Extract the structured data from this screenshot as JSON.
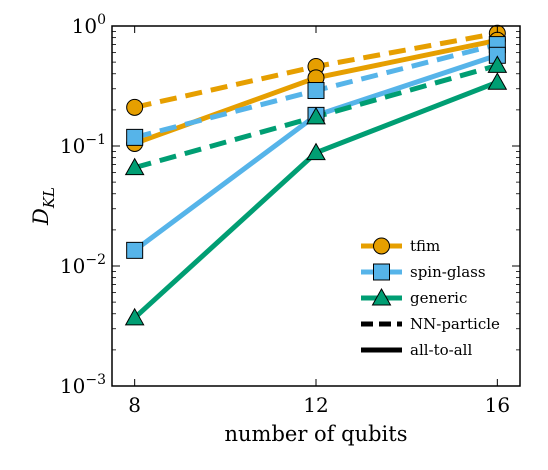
{
  "chart_data": {
    "type": "line",
    "xlabel": "number of qubits",
    "ylabel": "D",
    "ylabel_subscript": "KL",
    "x": [
      8,
      12,
      16
    ],
    "xticks": [
      "8",
      "12",
      "16"
    ],
    "yscale": "log",
    "ylim": [
      0.001,
      1.0
    ],
    "yticks": [
      {
        "base": "10",
        "exp": "0",
        "value": 1
      },
      {
        "base": "10",
        "exp": "−1",
        "value": 0.1
      },
      {
        "base": "10",
        "exp": "−2",
        "value": 0.01
      },
      {
        "base": "10",
        "exp": "−3",
        "value": 0.001
      }
    ],
    "grid": false,
    "legend_position": "bottom-right",
    "series": [
      {
        "name": "tfim",
        "variant": "NN-particle",
        "values": [
          0.21,
          0.46,
          0.87
        ],
        "color": "#E69F00",
        "marker": "circle",
        "dash": true
      },
      {
        "name": "tfim",
        "variant": "all-to-all",
        "values": [
          0.105,
          0.37,
          0.76
        ],
        "color": "#E69F00",
        "marker": "circle",
        "dash": false
      },
      {
        "name": "spin-glass",
        "variant": "NN-particle",
        "values": [
          0.118,
          0.29,
          0.7
        ],
        "color": "#56B4E9",
        "marker": "square",
        "dash": true
      },
      {
        "name": "spin-glass",
        "variant": "all-to-all",
        "values": [
          0.0135,
          0.18,
          0.57
        ],
        "color": "#56B4E9",
        "marker": "square",
        "dash": false
      },
      {
        "name": "generic",
        "variant": "NN-particle",
        "values": [
          0.066,
          0.175,
          0.47
        ],
        "color": "#009E73",
        "marker": "triangle",
        "dash": true
      },
      {
        "name": "generic",
        "variant": "all-to-all",
        "values": [
          0.0037,
          0.088,
          0.34
        ],
        "color": "#009E73",
        "marker": "triangle",
        "dash": false
      }
    ],
    "legend": {
      "entries": [
        {
          "label": "tfim",
          "color": "#E69F00",
          "marker": "circle"
        },
        {
          "label": "spin-glass",
          "color": "#56B4E9",
          "marker": "square"
        },
        {
          "label": "generic",
          "color": "#009E73",
          "marker": "triangle"
        }
      ],
      "styles": [
        {
          "label": "NN-particle",
          "dash": true
        },
        {
          "label": "all-to-all",
          "dash": false
        }
      ]
    }
  }
}
